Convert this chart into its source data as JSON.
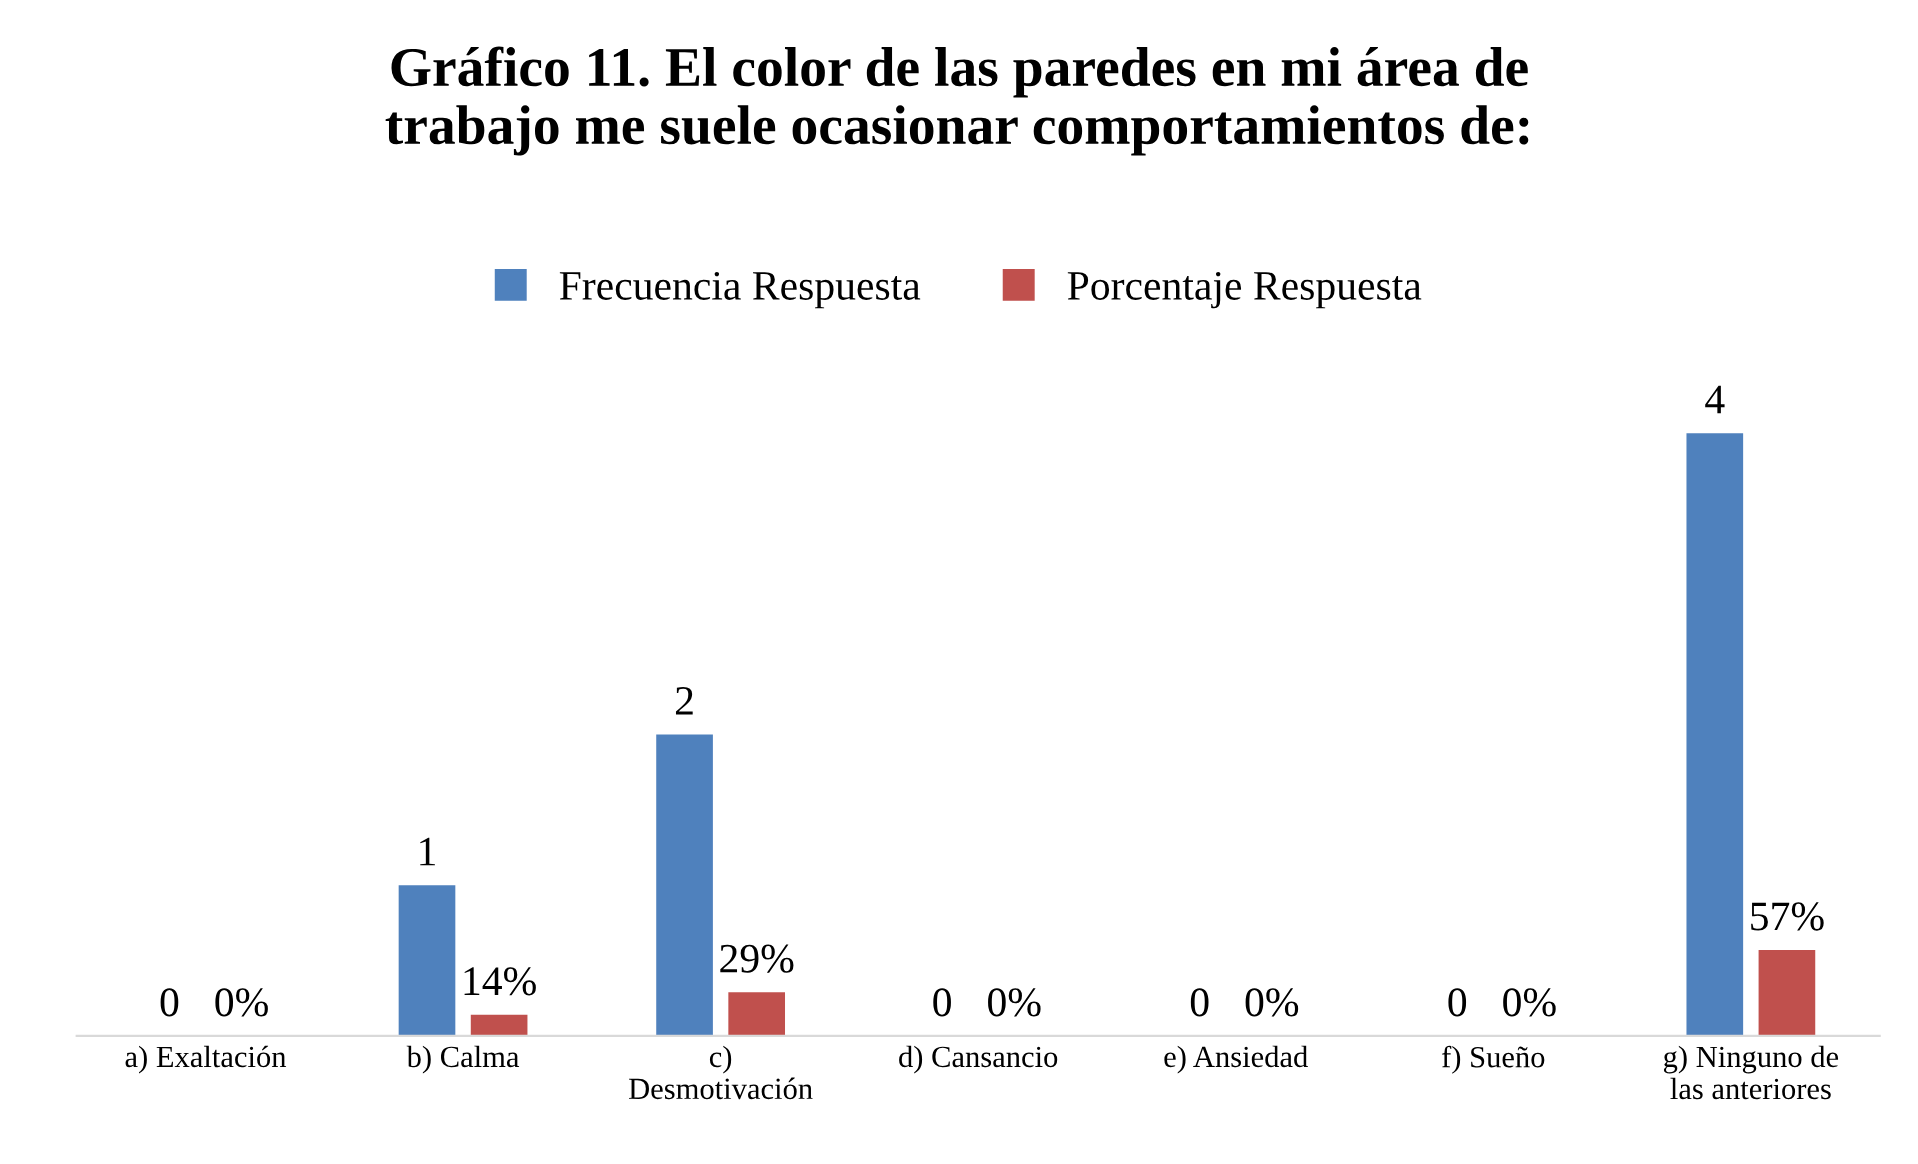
{
  "chart_data": {
    "type": "bar",
    "title": "Gráfico 11. El color de las paredes en mi área de\ntrabajo me suele ocasionar comportamientos de:",
    "categories": [
      "a) Exaltación",
      "b) Calma",
      "c)\nDesmotivación",
      "d) Cansancio",
      "e) Ansiedad",
      "f) Sueño",
      "g) Ninguno de\nlas anteriores"
    ],
    "series": [
      {
        "name": "Frecuencia Respuesta",
        "color": "#4f81bd",
        "values": [
          0,
          1,
          2,
          0,
          0,
          0,
          4
        ],
        "value_labels": [
          "0",
          "1",
          "2",
          "0",
          "0",
          "0",
          "4"
        ]
      },
      {
        "name": "Porcentaje Respuesta",
        "color": "#c0504d",
        "values": [
          0,
          0.14,
          0.29,
          0,
          0,
          0,
          0.57
        ],
        "value_labels": [
          "0%",
          "14%",
          "29%",
          "0%",
          "0%",
          "0%",
          "57%"
        ]
      }
    ],
    "legend": "top",
    "grid": false
  }
}
